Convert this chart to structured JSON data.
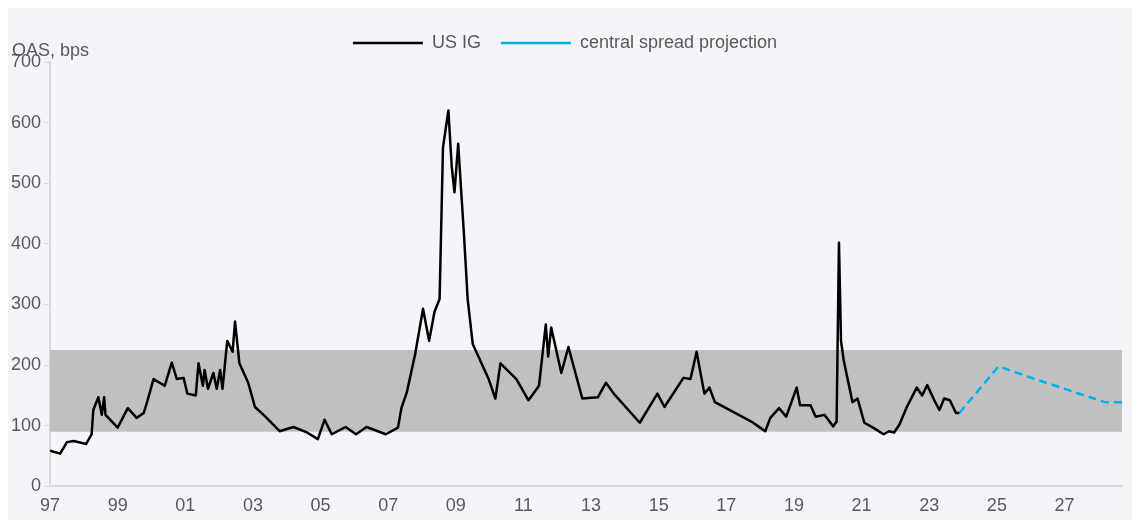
{
  "chart_data": {
    "type": "line",
    "ylabel": "OAS, bps",
    "legend": "top",
    "xlim": [
      1997,
      2028.7
    ],
    "ylim": [
      0,
      700
    ],
    "xticks": [
      {
        "value": 1997,
        "label": "97"
      },
      {
        "value": 1999,
        "label": "99"
      },
      {
        "value": 2001,
        "label": "01"
      },
      {
        "value": 2003,
        "label": "03"
      },
      {
        "value": 2005,
        "label": "05"
      },
      {
        "value": 2007,
        "label": "07"
      },
      {
        "value": 2009,
        "label": "09"
      },
      {
        "value": 2011,
        "label": "11"
      },
      {
        "value": 2013,
        "label": "13"
      },
      {
        "value": 2015,
        "label": "15"
      },
      {
        "value": 2017,
        "label": "17"
      },
      {
        "value": 2019,
        "label": "19"
      },
      {
        "value": 2021,
        "label": "21"
      },
      {
        "value": 2023,
        "label": "23"
      },
      {
        "value": 2025,
        "label": "25"
      },
      {
        "value": 2027,
        "label": "27"
      }
    ],
    "yticks": [
      0,
      100,
      200,
      300,
      400,
      500,
      600,
      700
    ],
    "bands": [
      {
        "axis": "y",
        "from": 90,
        "to": 225,
        "color": "#c0c0c0"
      }
    ],
    "series": [
      {
        "name": "US IG",
        "color": "#000000",
        "line_style": "solid",
        "x": [
          1997.0,
          1997.3,
          1997.5,
          1997.7,
          1998.07,
          1998.23,
          1998.28,
          1998.43,
          1998.53,
          1998.6,
          1998.64,
          1999.0,
          1999.3,
          1999.56,
          1999.77,
          1999.87,
          2000.06,
          2000.39,
          2000.6,
          2000.75,
          2000.95,
          2001.06,
          2001.31,
          2001.39,
          2001.52,
          2001.57,
          2001.67,
          2001.83,
          2001.93,
          2002.03,
          2002.1,
          2002.24,
          2002.4,
          2002.47,
          2002.6,
          2002.86,
          2003.06,
          2003.37,
          2003.79,
          2004.2,
          2004.6,
          2004.92,
          2005.12,
          2005.33,
          2005.74,
          2006.05,
          2006.36,
          2006.93,
          2007.29,
          2007.39,
          2007.55,
          2007.8,
          2008.03,
          2008.21,
          2008.37,
          2008.52,
          2008.62,
          2008.78,
          2008.88,
          2008.96,
          2009.07,
          2009.24,
          2009.35,
          2009.5,
          2009.97,
          2010.17,
          2010.32,
          2010.79,
          2011.15,
          2011.46,
          2011.66,
          2011.73,
          2011.82,
          2012.12,
          2012.33,
          2012.74,
          2013.2,
          2013.44,
          2013.67,
          2014.44,
          2014.96,
          2015.17,
          2015.73,
          2015.94,
          2016.12,
          2016.35,
          2016.5,
          2016.66,
          2017.27,
          2017.74,
          2018.15,
          2018.3,
          2018.56,
          2018.77,
          2019.08,
          2019.18,
          2019.49,
          2019.64,
          2019.9,
          2020.16,
          2020.26,
          2020.33,
          2020.39,
          2020.47,
          2020.73,
          2020.88,
          2021.08,
          2021.34,
          2021.65,
          2021.81,
          2021.96,
          2022.12,
          2022.32,
          2022.63,
          2022.79,
          2022.94,
          2023.15,
          2023.3,
          2023.44,
          2023.61,
          2023.79,
          2023.89
        ],
        "values": [
          59,
          54,
          73,
          75,
          70,
          86,
          126,
          147,
          118,
          147,
          118,
          97,
          129,
          113,
          121,
          139,
          177,
          166,
          204,
          177,
          179,
          153,
          150,
          203,
          166,
          192,
          161,
          187,
          161,
          192,
          161,
          240,
          222,
          272,
          203,
          171,
          131,
          115,
          91,
          98,
          89,
          78,
          110,
          86,
          98,
          86,
          98,
          86,
          97,
          129,
          155,
          219,
          293,
          240,
          288,
          309,
          559,
          620,
          527,
          485,
          565,
          416,
          309,
          235,
          177,
          145,
          203,
          177,
          142,
          166,
          267,
          214,
          262,
          187,
          230,
          145,
          147,
          171,
          153,
          105,
          153,
          131,
          179,
          177,
          222,
          153,
          163,
          139,
          121,
          107,
          91,
          113,
          129,
          115,
          163,
          134,
          134,
          115,
          118,
          99,
          107,
          402,
          240,
          208,
          139,
          145,
          105,
          97,
          86,
          91,
          89,
          102,
          129,
          163,
          150,
          167,
          142,
          126,
          145,
          142,
          121,
          121
        ]
      },
      {
        "name": "central spread projection",
        "color": "#00b0f0",
        "line_style": "dashed",
        "x": [
          2023.89,
          2025.05,
          2026.13,
          2028.19,
          2028.7
        ],
        "values": [
          121,
          198,
          177,
          139,
          139
        ]
      }
    ]
  }
}
